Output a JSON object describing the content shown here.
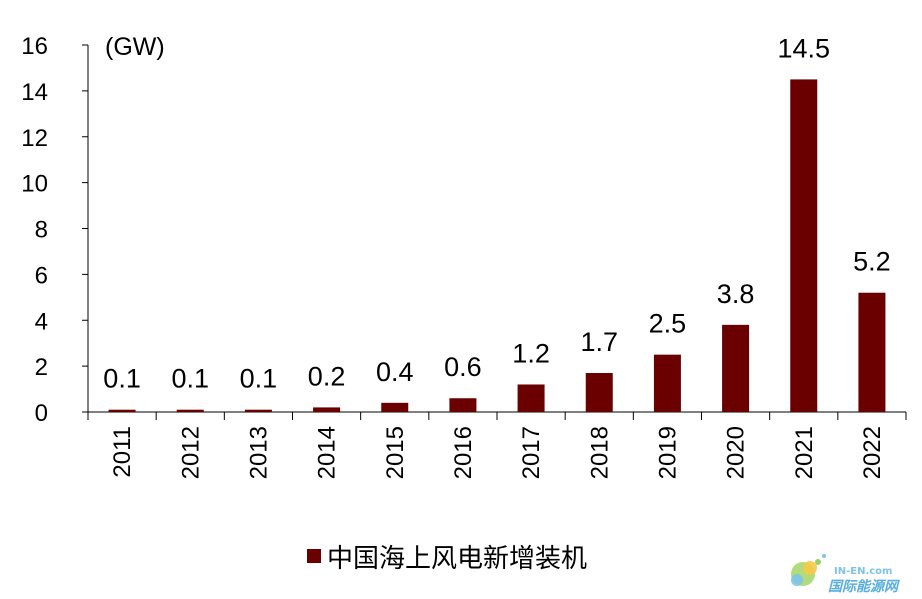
{
  "chart_data": {
    "type": "bar",
    "categories": [
      "2011",
      "2012",
      "2013",
      "2014",
      "2015",
      "2016",
      "2017",
      "2018",
      "2019",
      "2020",
      "2021",
      "2022"
    ],
    "series": [
      {
        "name": "中国海上风电新增装机",
        "values": [
          0.1,
          0.1,
          0.1,
          0.2,
          0.4,
          0.6,
          1.2,
          1.7,
          2.5,
          3.8,
          14.5,
          5.2
        ],
        "labels": [
          "0.1",
          "0.1",
          "0.1",
          "0.2",
          "0.4",
          "0.6",
          "1.2",
          "1.7",
          "2.5",
          "3.8",
          "14.5",
          "5.2"
        ]
      }
    ],
    "ylim": [
      0,
      16
    ],
    "yticks": [
      "0",
      "2",
      "4",
      "6",
      "8",
      "10",
      "12",
      "14",
      "16"
    ],
    "unit_label": "(GW)",
    "bar_color": "#6b0000",
    "legend_position": "bottom",
    "grid": false
  },
  "watermark": {
    "line1": "IN-EN.com",
    "line2": "国际能源网"
  }
}
